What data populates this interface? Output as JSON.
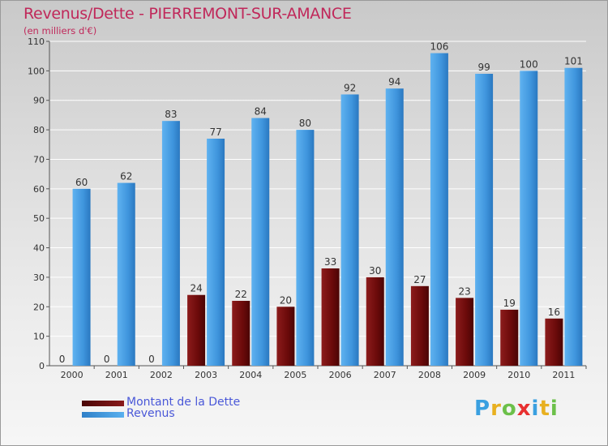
{
  "title": "Revenus/Dette - PIERREMONT-SUR-AMANCE",
  "subtitle": "(en milliers d'€)",
  "chart_data": {
    "type": "bar",
    "categories": [
      "2000",
      "2001",
      "2002",
      "2003",
      "2004",
      "2005",
      "2006",
      "2007",
      "2008",
      "2009",
      "2010",
      "2011"
    ],
    "series": [
      {
        "name": "Montant de la Dette",
        "color": "#6b0a0a",
        "values": [
          0,
          0,
          0,
          24,
          22,
          20,
          33,
          30,
          27,
          23,
          19,
          16
        ]
      },
      {
        "name": "Revenus",
        "color": "#3f95dd",
        "values": [
          60,
          62,
          83,
          77,
          84,
          80,
          92,
          94,
          106,
          99,
          100,
          101
        ]
      }
    ],
    "ylim": [
      0,
      110
    ],
    "yticks": [
      0,
      10,
      20,
      30,
      40,
      50,
      60,
      70,
      80,
      90,
      100,
      110
    ],
    "grid": true,
    "legend_position": "bottom-left"
  },
  "legend": [
    {
      "label": "Montant de la Dette",
      "color": "#6b0a0a"
    },
    {
      "label": "Revenus",
      "color": "#3f95dd"
    }
  ],
  "logo": {
    "letters": [
      "P",
      "r",
      "o",
      "x",
      "i",
      "t",
      "i"
    ],
    "colors": [
      "#3aa0e0",
      "#e8b020",
      "#6cc04a",
      "#e83030",
      "#3aa0e0",
      "#e8b020",
      "#6cc04a"
    ]
  }
}
